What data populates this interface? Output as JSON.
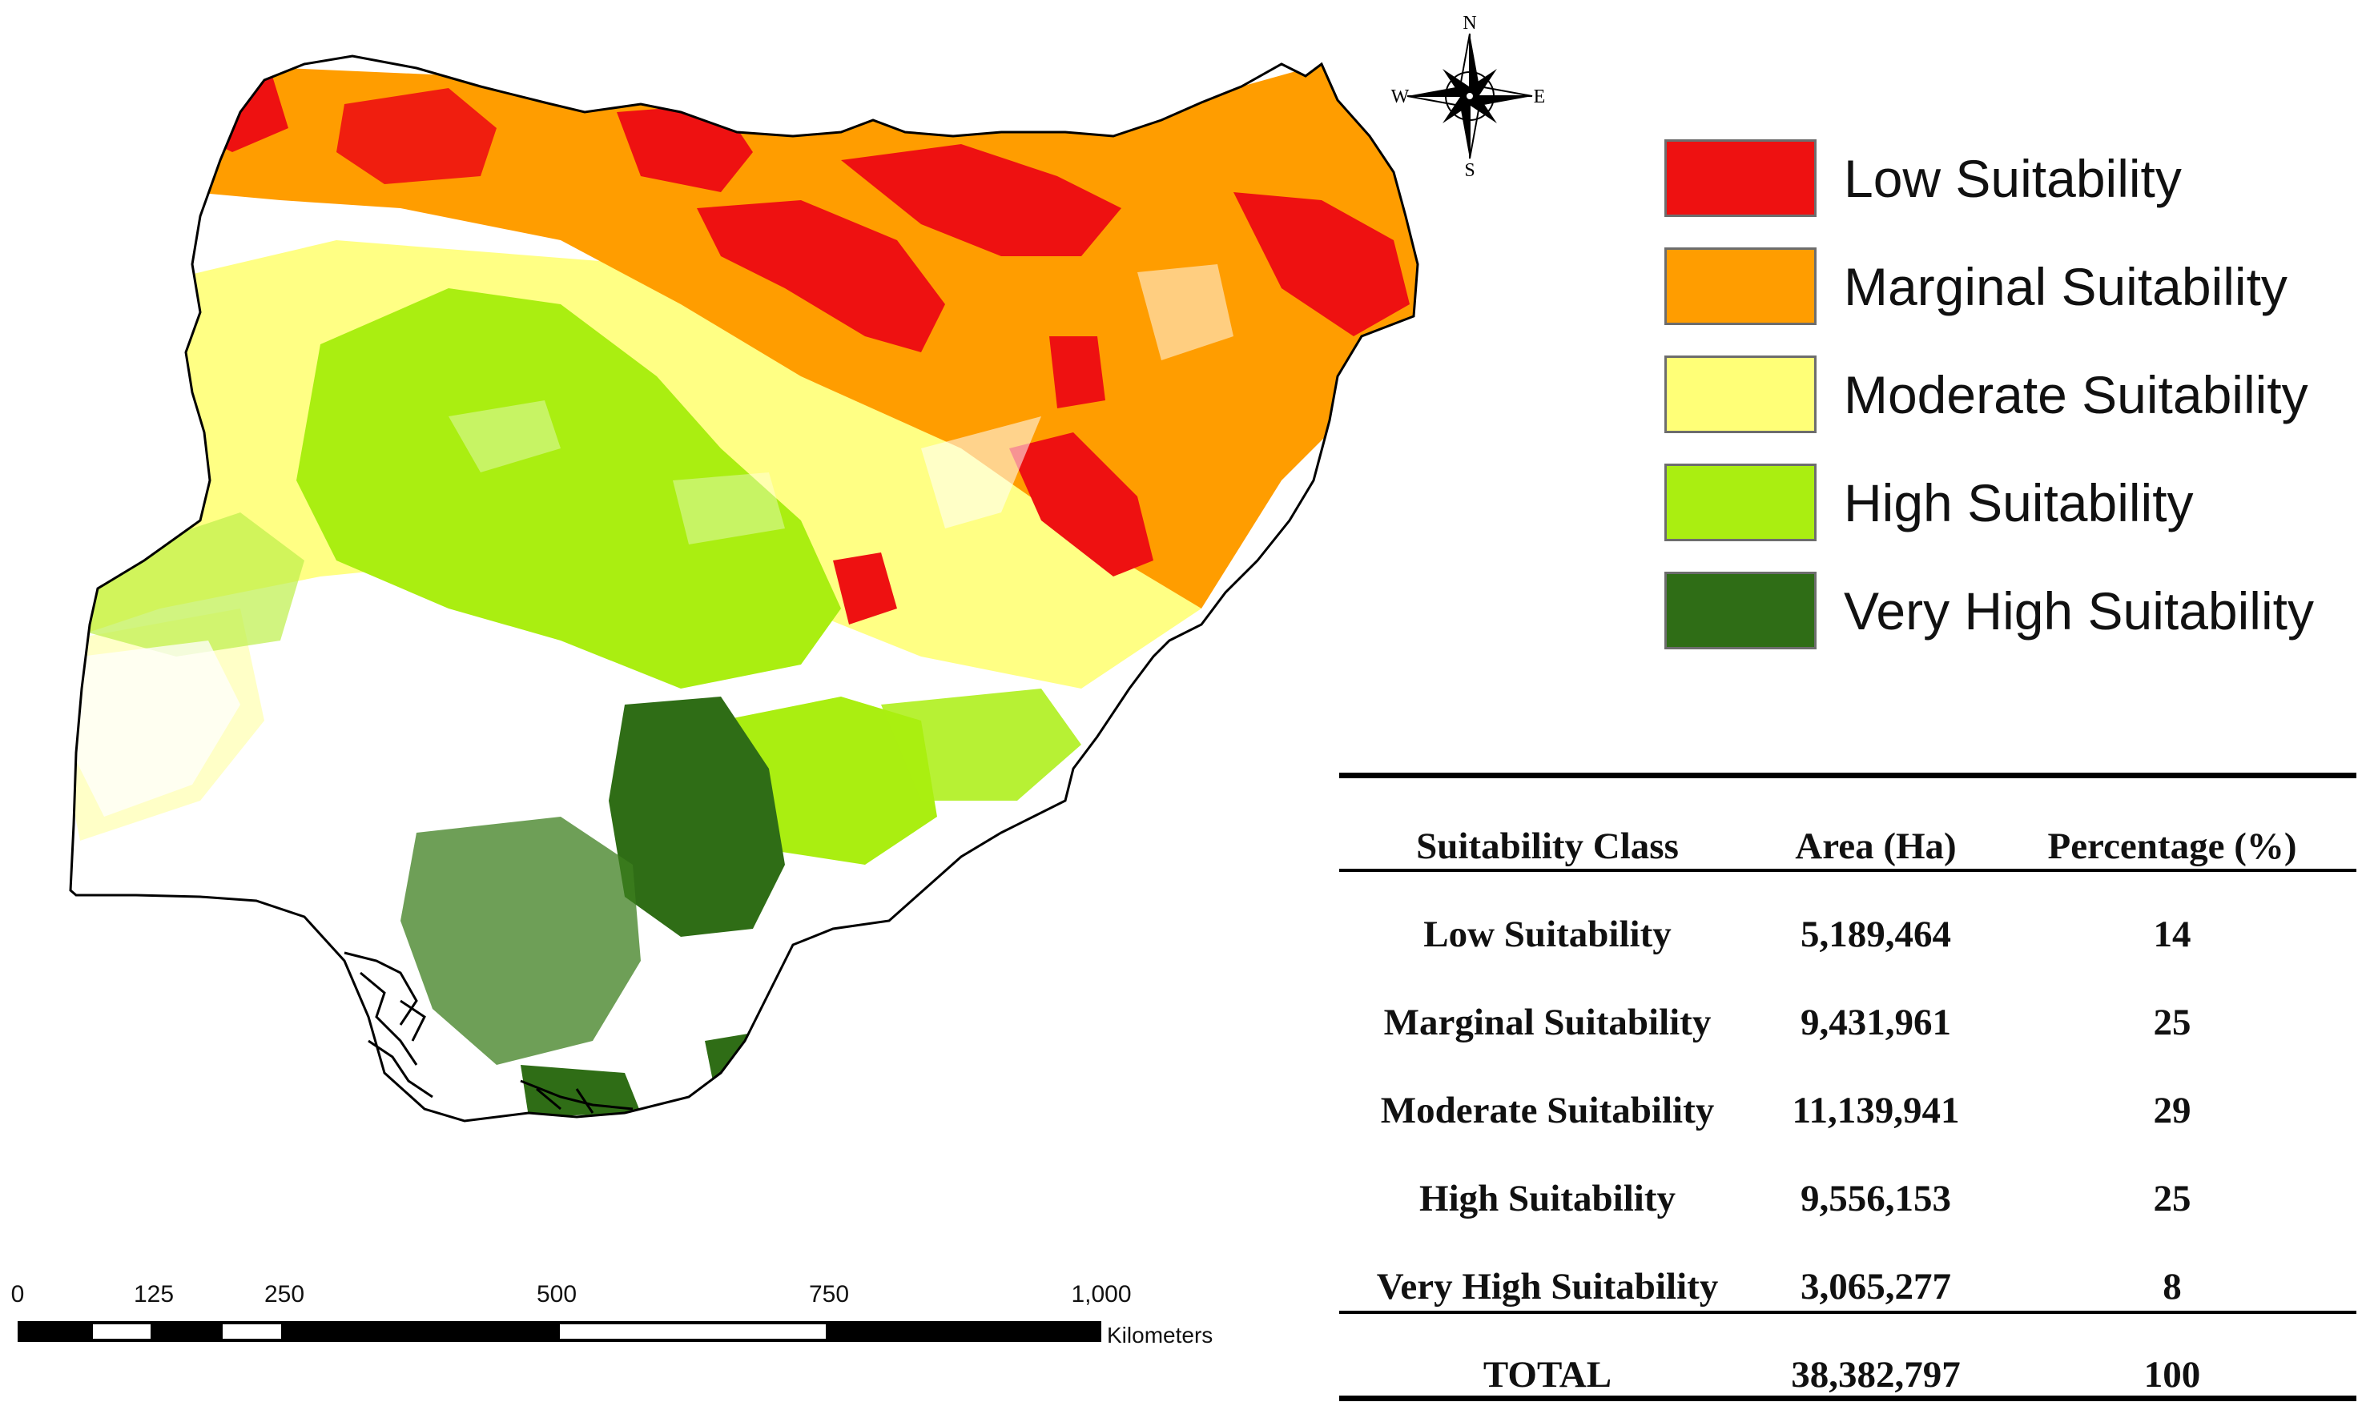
{
  "colors": {
    "low": "#ee1111",
    "marginal": "#ff9d00",
    "moderate": "#ffff77",
    "high": "#aaee11",
    "very_high": "#2f6d16",
    "boundary": "#000000"
  },
  "compass": {
    "north": "N",
    "south": "S",
    "east": "E",
    "west": "W"
  },
  "legend": {
    "items": [
      {
        "label": "Low Suitability",
        "color": "#ee1111"
      },
      {
        "label": "Marginal Suitability",
        "color": "#ff9d00"
      },
      {
        "label": "Moderate Suitability",
        "color": "#ffff77"
      },
      {
        "label": "High Suitability",
        "color": "#aaee11"
      },
      {
        "label": "Very High Suitability",
        "color": "#2f6d16"
      }
    ]
  },
  "table": {
    "headers": [
      "Suitability Class",
      "Area (Ha)",
      "Percentage (%)"
    ],
    "rows": [
      [
        "Low Suitability",
        "5,189,464",
        "14"
      ],
      [
        "Marginal Suitability",
        "9,431,961",
        "25"
      ],
      [
        "Moderate Suitability",
        "11,139,941",
        "29"
      ],
      [
        "High Suitability",
        "9,556,153",
        "25"
      ],
      [
        "Very High Suitability",
        "3,065,277",
        "8"
      ]
    ],
    "total": [
      "TOTAL",
      "38,382,797",
      "100"
    ]
  },
  "scale": {
    "ticks": [
      "0",
      "125",
      "250",
      "500",
      "750",
      "1,000"
    ],
    "unit": "Kilometers"
  }
}
